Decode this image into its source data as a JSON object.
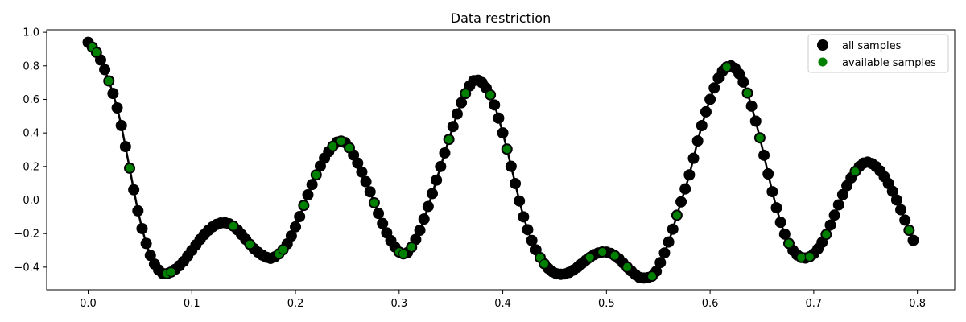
{
  "chart_data": {
    "type": "line",
    "title": "Data restriction",
    "xlabel": "",
    "ylabel": "",
    "xlim": [
      -0.04,
      0.836
    ],
    "ylim": [
      -0.535,
      1.015
    ],
    "x_ticks": [
      0.0,
      0.1,
      0.2,
      0.3,
      0.4,
      0.5,
      0.6,
      0.7,
      0.8
    ],
    "x_tick_labels": [
      "0.0",
      "0.1",
      "0.2",
      "0.3",
      "0.4",
      "0.5",
      "0.6",
      "0.7",
      "0.8"
    ],
    "y_ticks": [
      -0.4,
      -0.2,
      0.0,
      0.2,
      0.4,
      0.6,
      0.8,
      1.0
    ],
    "y_tick_labels": [
      "−0.4",
      "−0.2",
      "0.0",
      "0.2",
      "0.4",
      "0.6",
      "0.8",
      "1.0"
    ],
    "grid": false,
    "legend_position": "top-right",
    "colors": {
      "all": "#000000",
      "available": "#008000"
    },
    "x_range": [
      0.0,
      0.796
    ],
    "sample_count": 200,
    "anchors": [
      [
        0.0,
        0.94
      ],
      [
        0.01,
        0.86
      ],
      [
        0.02,
        0.71
      ],
      [
        0.03,
        0.5
      ],
      [
        0.04,
        0.19
      ],
      [
        0.05,
        -0.12
      ],
      [
        0.06,
        -0.33
      ],
      [
        0.07,
        -0.43
      ],
      [
        0.078,
        -0.435
      ],
      [
        0.09,
        -0.38
      ],
      [
        0.1,
        -0.3
      ],
      [
        0.11,
        -0.22
      ],
      [
        0.12,
        -0.16
      ],
      [
        0.13,
        -0.135
      ],
      [
        0.14,
        -0.155
      ],
      [
        0.15,
        -0.22
      ],
      [
        0.16,
        -0.29
      ],
      [
        0.17,
        -0.335
      ],
      [
        0.178,
        -0.345
      ],
      [
        0.19,
        -0.28
      ],
      [
        0.2,
        -0.16
      ],
      [
        0.21,
        0.0
      ],
      [
        0.22,
        0.15
      ],
      [
        0.23,
        0.27
      ],
      [
        0.24,
        0.345
      ],
      [
        0.245,
        0.35
      ],
      [
        0.25,
        0.33
      ],
      [
        0.26,
        0.22
      ],
      [
        0.27,
        0.08
      ],
      [
        0.28,
        -0.08
      ],
      [
        0.29,
        -0.22
      ],
      [
        0.3,
        -0.31
      ],
      [
        0.305,
        -0.32
      ],
      [
        0.31,
        -0.3
      ],
      [
        0.32,
        -0.18
      ],
      [
        0.33,
        0.0
      ],
      [
        0.34,
        0.2
      ],
      [
        0.35,
        0.4
      ],
      [
        0.36,
        0.58
      ],
      [
        0.37,
        0.7
      ],
      [
        0.375,
        0.715
      ],
      [
        0.38,
        0.7
      ],
      [
        0.39,
        0.6
      ],
      [
        0.4,
        0.4
      ],
      [
        0.41,
        0.15
      ],
      [
        0.42,
        -0.1
      ],
      [
        0.43,
        -0.27
      ],
      [
        0.44,
        -0.38
      ],
      [
        0.45,
        -0.435
      ],
      [
        0.46,
        -0.44
      ],
      [
        0.47,
        -0.41
      ],
      [
        0.48,
        -0.36
      ],
      [
        0.49,
        -0.32
      ],
      [
        0.5,
        -0.31
      ],
      [
        0.51,
        -0.34
      ],
      [
        0.52,
        -0.4
      ],
      [
        0.53,
        -0.455
      ],
      [
        0.535,
        -0.465
      ],
      [
        0.545,
        -0.45
      ],
      [
        0.55,
        -0.4
      ],
      [
        0.56,
        -0.25
      ],
      [
        0.57,
        -0.05
      ],
      [
        0.58,
        0.15
      ],
      [
        0.59,
        0.4
      ],
      [
        0.6,
        0.6
      ],
      [
        0.61,
        0.75
      ],
      [
        0.62,
        0.8
      ],
      [
        0.63,
        0.73
      ],
      [
        0.64,
        0.56
      ],
      [
        0.65,
        0.32
      ],
      [
        0.66,
        0.05
      ],
      [
        0.67,
        -0.17
      ],
      [
        0.68,
        -0.3
      ],
      [
        0.69,
        -0.345
      ],
      [
        0.7,
        -0.32
      ],
      [
        0.71,
        -0.23
      ],
      [
        0.72,
        -0.09
      ],
      [
        0.73,
        0.06
      ],
      [
        0.74,
        0.17
      ],
      [
        0.75,
        0.225
      ],
      [
        0.76,
        0.2
      ],
      [
        0.77,
        0.12
      ],
      [
        0.78,
        0.0
      ],
      [
        0.79,
        -0.15
      ],
      [
        0.796,
        -0.24
      ]
    ],
    "available_x": [
      0.004,
      0.008,
      0.02,
      0.04,
      0.076,
      0.08,
      0.14,
      0.156,
      0.184,
      0.188,
      0.208,
      0.22,
      0.236,
      0.244,
      0.252,
      0.276,
      0.3,
      0.304,
      0.312,
      0.348,
      0.364,
      0.388,
      0.404,
      0.436,
      0.44,
      0.484,
      0.496,
      0.508,
      0.52,
      0.544,
      0.568,
      0.616,
      0.636,
      0.648,
      0.676,
      0.688,
      0.696,
      0.712,
      0.74,
      0.792
    ],
    "legend": [
      "all samples",
      "available samples"
    ]
  }
}
